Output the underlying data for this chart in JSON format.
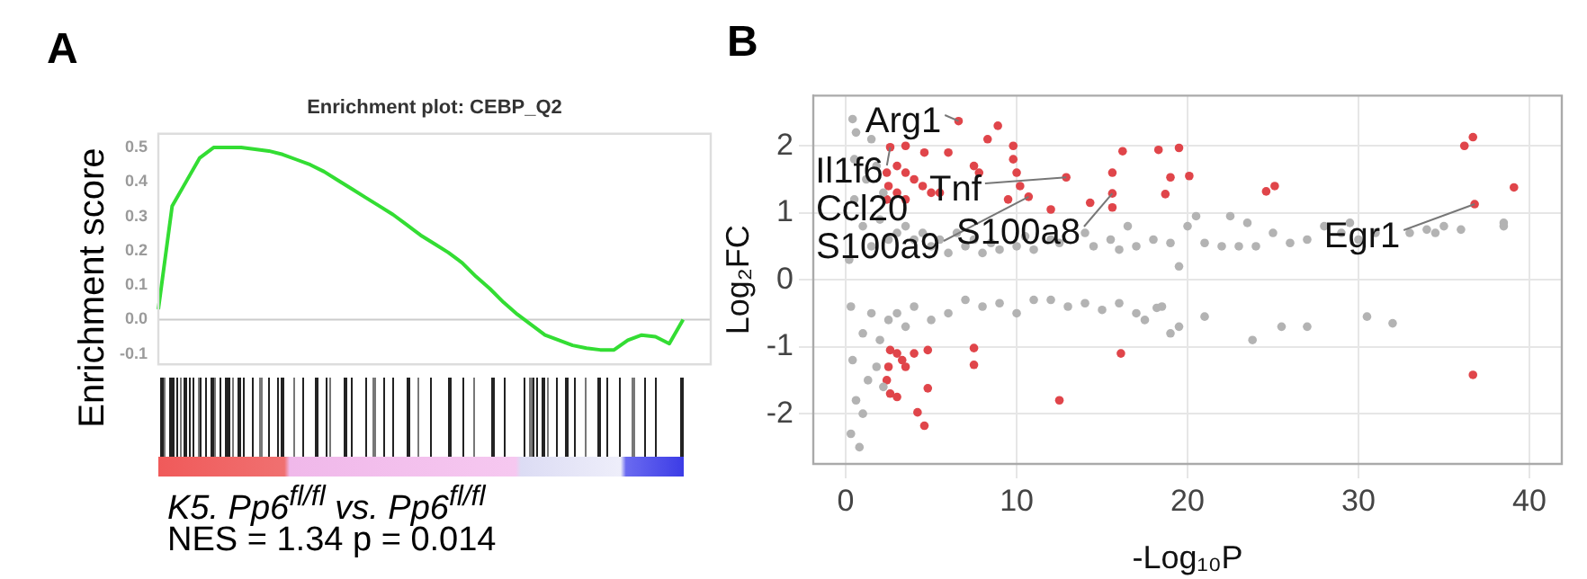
{
  "chart_data": [
    {
      "type": "line",
      "title": "Enrichment plot: CEBP_Q2",
      "ylabel": "Enrichment score",
      "annotations": [
        "A",
        "K5. Pp6$^{fl/fl}$ vs. Pp6$^{fl/fl}$",
        "NES = 1.34 p = 0.014"
      ],
      "categories": [
        null,
        null,
        null,
        null,
        null,
        null,
        null,
        null,
        null,
        null,
        null,
        null,
        null,
        null,
        null,
        null,
        null,
        null,
        null,
        null,
        null,
        null,
        null,
        null,
        null,
        null,
        null,
        null,
        null,
        null,
        null,
        null,
        null,
        null,
        null,
        null,
        null,
        null,
        null,
        null,
        null
      ],
      "series": [
        {
          "color": "#33dd33",
          "values": [
            0.03,
            0.33,
            0.4,
            0.47,
            0.5,
            0.5,
            0.5,
            0.495,
            0.49,
            0.48,
            0.465,
            0.45,
            0.43,
            0.405,
            0.38,
            0.355,
            0.33,
            0.305,
            0.275,
            0.245,
            0.22,
            0.195,
            0.165,
            0.125,
            0.09,
            0.05,
            0.015,
            -0.015,
            -0.045,
            -0.06,
            -0.075,
            -0.083,
            -0.088,
            -0.088,
            -0.06,
            -0.045,
            -0.05,
            -0.07,
            0,
            null,
            null
          ]
        }
      ],
      "ylim": [
        -0.13,
        0.54
      ],
      "yticks": [
        -0.1,
        {
          "value": 0,
          "label": "0.0"
        },
        0.1,
        0.2,
        0.3,
        0.4,
        0.5
      ],
      "tick_labels": "y",
      "grid": false,
      "legend": false,
      "marker": "none",
      "line_style": "solid",
      "ref_lines": [
        {
          "axis": "y",
          "value": 0,
          "color": "#cccccc"
        }
      ]
    },
    {
      "type": "scatter",
      "xlabel": "-Log₁₀P",
      "ylabel": "Log₂FC",
      "annotations": [
        "B",
        {
          "text": "Arg1",
          "x": 6.6,
          "y": 2.37
        },
        {
          "text": "Il1f6",
          "x": 2.6,
          "y": 1.98
        },
        "Ccl20",
        {
          "text": "S100a9",
          "x": 10.7,
          "y": 1.24
        },
        {
          "text": "Tnf",
          "x": 12.9,
          "y": 1.53
        },
        {
          "text": "S100a8",
          "x": 15.6,
          "y": 1.29
        },
        {
          "text": "Egr1",
          "x": 36.8,
          "y": 1.13
        }
      ],
      "series": [
        {
          "color": "#b3b3b3",
          "x": [
            0.2,
            0.3,
            0.5,
            0.4,
            0.6,
            0.3,
            0.8,
            0.5,
            1,
            1,
            1.2,
            1.3,
            1.5,
            1.5,
            2,
            2,
            2.2,
            2.5,
            2.5,
            3,
            3,
            3.5,
            3.5,
            4,
            4,
            4.5,
            5,
            5,
            5.5,
            6,
            6,
            6.5,
            7,
            7,
            7.5,
            8,
            8,
            8.5,
            9,
            9,
            10,
            10,
            10.5,
            11,
            11,
            12,
            12.5,
            13,
            14,
            14.5,
            15,
            15.5,
            16,
            16,
            16.5,
            17,
            17.5,
            18,
            18.5,
            19,
            19.5,
            19.5,
            20,
            20.5,
            21,
            21,
            22,
            22.5,
            23,
            23.5,
            23.8,
            24,
            25,
            25.5,
            26,
            27,
            27,
            28,
            29,
            29.5,
            30,
            30.5,
            31,
            32,
            33,
            34,
            34.5,
            35,
            36,
            38.5,
            38.5,
            17,
            18.2,
            19,
            14,
            12,
            0.6,
            1,
            1.8,
            2.2,
            0.4,
            1.5,
            1.8
          ],
          "values": [
            0.3,
            -0.4,
            1.2,
            -1.2,
            2.2,
            -2.3,
            -2.5,
            1.8,
            0.8,
            -0.8,
            1.5,
            -1.5,
            0.5,
            -0.5,
            0.9,
            -0.9,
            1.3,
            0.6,
            -0.6,
            0.7,
            -0.5,
            0.8,
            -0.7,
            0.6,
            -0.4,
            0.7,
            0.5,
            -0.6,
            0.6,
            0.4,
            -0.5,
            0.7,
            0.5,
            -0.3,
            0.6,
            0.4,
            -0.4,
            0.55,
            0.45,
            -0.35,
            0.5,
            -0.5,
            0.65,
            0.45,
            -0.3,
            0.6,
            0.55,
            -0.4,
            0.7,
            0.5,
            -0.45,
            0.6,
            0.45,
            -0.35,
            0.8,
            0.5,
            -0.6,
            0.6,
            -0.4,
            0.55,
            0.2,
            -0.7,
            0.8,
            0.95,
            0.55,
            -0.55,
            0.5,
            0.95,
            0.5,
            0.85,
            -0.9,
            0.5,
            0.7,
            -0.7,
            0.55,
            -0.7,
            0.6,
            0.8,
            0.7,
            0.85,
            0.6,
            -0.55,
            0.7,
            -0.65,
            0.7,
            0.75,
            0.7,
            0.8,
            0.75,
            0.85,
            0.8,
            -0.5,
            -0.42,
            -0.8,
            -0.35,
            -0.3,
            -1.8,
            -2,
            -1.3,
            -1.6,
            2.4,
            2.1,
            1.7
          ]
        },
        {
          "color": "#e0454a",
          "x": [
            6.6,
            8.9,
            8.3,
            4.6,
            6,
            3.5,
            2.6,
            2.4,
            3,
            3.5,
            4,
            2.5,
            3,
            2.4,
            3.5,
            4.5,
            5,
            5.5,
            7.5,
            7.8,
            9.8,
            9.8,
            10,
            10.2,
            9.5,
            10.7,
            12,
            12.9,
            14.3,
            15.6,
            15.6,
            15.6,
            16.2,
            18.3,
            19.5,
            19,
            18.7,
            20.1,
            24.6,
            25.1,
            36.2,
            36.7,
            36.8,
            39.1,
            2.6,
            3,
            2.5,
            3.3,
            2.4,
            2.6,
            3,
            3.5,
            4,
            4.8,
            4.8,
            4.2,
            4.6,
            7.5,
            7.5,
            12.5,
            16.1,
            36.7
          ],
          "values": [
            2.37,
            2.3,
            2.1,
            1.9,
            1.9,
            2,
            1.98,
            1.6,
            1.7,
            1.6,
            1.5,
            1.4,
            1.3,
            1.2,
            1.2,
            1.4,
            1.3,
            1.3,
            1.7,
            1.6,
            2,
            1.8,
            1.6,
            1.4,
            1.2,
            1.24,
            1.05,
            1.53,
            1.15,
            1.6,
            1.29,
            1.08,
            1.92,
            1.94,
            1.97,
            1.53,
            1.28,
            1.55,
            1.32,
            1.4,
            2,
            2.13,
            1.13,
            1.38,
            -1.05,
            -1.1,
            -1.3,
            -1.2,
            -1.5,
            -1.7,
            -1.75,
            -1.3,
            -1.1,
            -1.05,
            -1.62,
            -1.98,
            -2.18,
            -1.02,
            -1.27,
            -1.8,
            -1.1,
            -1.42
          ]
        }
      ],
      "xlim": [
        -1.9,
        41.9
      ],
      "xticks": [
        0,
        10,
        20,
        30,
        40
      ],
      "ylim": [
        -2.75,
        2.75
      ],
      "yticks": [
        -2,
        -1,
        0,
        1,
        2
      ],
      "grid": true,
      "legend": false,
      "marker": "circle"
    }
  ]
}
